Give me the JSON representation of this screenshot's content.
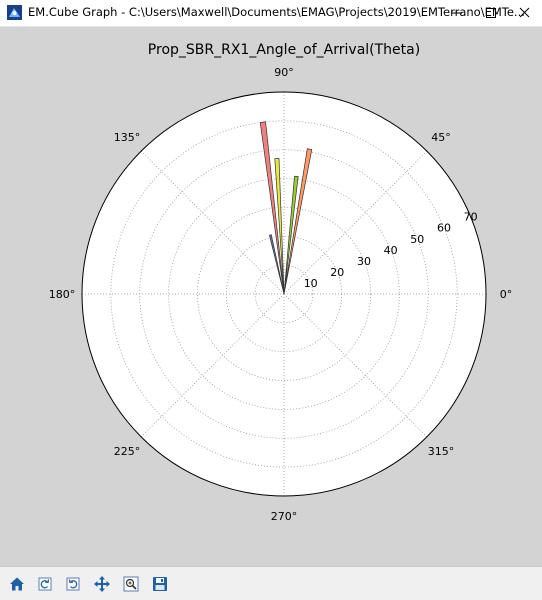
{
  "window": {
    "title": "EM.Cube Graph - C:\\Users\\Maxwell\\Documents\\EMAG\\Projects\\2019\\EMTerrano\\EMTe...",
    "controls": [
      "minimize",
      "maximize",
      "close"
    ]
  },
  "toolbar": {
    "buttons": [
      "home-icon",
      "back-icon",
      "forward-icon",
      "pan-icon",
      "zoom-icon",
      "save-icon"
    ]
  },
  "chart_data": {
    "type": "polar-bar",
    "title": "Prop_SBR_RX1_Angle_of_Arrival(Theta)",
    "angular_ticks": [
      "0°",
      "45°",
      "90°",
      "135°",
      "180°",
      "225°",
      "270°",
      "315°"
    ],
    "radial_ticks": [
      "10",
      "20",
      "30",
      "40",
      "50",
      "60",
      "70"
    ],
    "rlim": [
      0,
      70
    ],
    "grid": true,
    "bars": [
      {
        "angle_deg": 97,
        "value": 60,
        "color": "#f08080"
      },
      {
        "angle_deg": 93,
        "value": 47,
        "color": "#e8e840"
      },
      {
        "angle_deg": 80,
        "value": 51,
        "color": "#ff9966"
      },
      {
        "angle_deg": 84,
        "value": 41,
        "color": "#9acd32"
      },
      {
        "angle_deg": 103,
        "value": 21,
        "color": "#6070b0"
      }
    ]
  }
}
